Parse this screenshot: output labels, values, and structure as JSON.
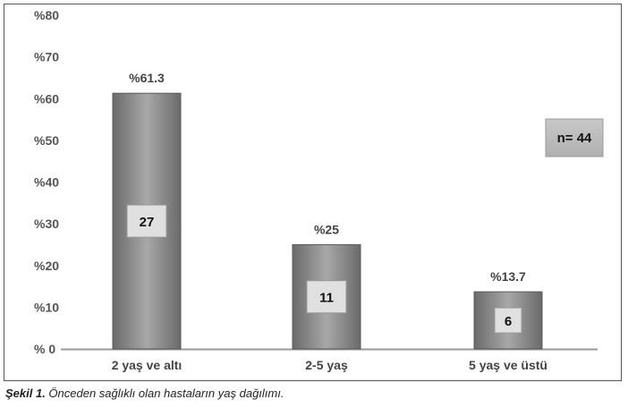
{
  "chart_data": {
    "type": "bar",
    "categories": [
      "2 yaş ve altı",
      "2-5 yaş",
      "5 yaş ve üstü"
    ],
    "values": [
      61.3,
      25,
      13.7
    ],
    "value_labels": [
      "%61.3",
      "%25",
      "%13.7"
    ],
    "counts": [
      "27",
      "11",
      "6"
    ],
    "ylim": [
      0,
      80
    ],
    "yticks": [
      0,
      10,
      20,
      30,
      40,
      50,
      60,
      70,
      80
    ],
    "ytick_labels": [
      "% 0",
      "%10",
      "%20",
      "%30",
      "%40",
      "%50",
      "%60",
      "%70",
      "%80"
    ],
    "annotation": "n=  44",
    "grid": false,
    "colors": {
      "bar": "#8a8a8a",
      "bar_edge": "#5a5a5a",
      "bar_center": "#aaaaaa",
      "count_box": "#e0e0e0",
      "axis": "#999999"
    }
  },
  "caption": {
    "label": "Şekil 1.",
    "text": " Önceden sağlıklı olan hastaların yaş dağılımı."
  }
}
